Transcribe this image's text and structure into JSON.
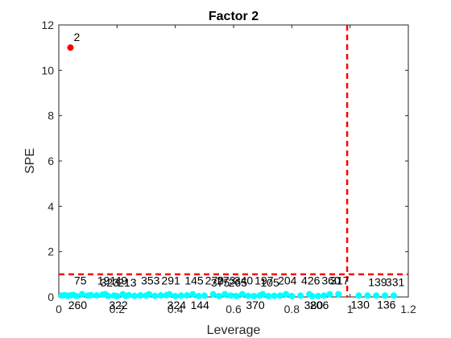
{
  "chart_data": {
    "type": "scatter",
    "title": "Factor 2",
    "xlabel": "Leverage",
    "ylabel": "SPE",
    "xlim": [
      0,
      1.2
    ],
    "ylim": [
      0,
      12
    ],
    "xticks": [
      0,
      0.2,
      0.4,
      0.6,
      0.8,
      1,
      1.2
    ],
    "xtick_labels": [
      "0",
      "0.2",
      "0.4",
      "0.6",
      "0.8",
      "1",
      "1.2"
    ],
    "yticks": [
      0,
      2,
      4,
      6,
      8,
      10,
      12
    ],
    "ytick_labels": [
      "0",
      "2",
      "4",
      "6",
      "8",
      "10",
      "12"
    ],
    "grid": false,
    "thresholds": {
      "leverage": 0.99,
      "spe": 1.0,
      "color": "#ff0000",
      "style": "dashed"
    },
    "series": [
      {
        "color": "#00ffff",
        "points": [
          {
            "x": 0.01,
            "y": 0.06,
            "label": ""
          },
          {
            "x": 0.02,
            "y": 0.08,
            "label": ""
          },
          {
            "x": 0.03,
            "y": 0.05,
            "label": ""
          },
          {
            "x": 0.04,
            "y": 0.07,
            "label": ""
          },
          {
            "x": 0.05,
            "y": 0.09,
            "label": ""
          },
          {
            "x": 0.06,
            "y": 0.04,
            "label": "260"
          },
          {
            "x": 0.08,
            "y": 0.12,
            "label": "75"
          },
          {
            "x": 0.1,
            "y": 0.06,
            "label": ""
          },
          {
            "x": 0.11,
            "y": 0.08,
            "label": ""
          },
          {
            "x": 0.13,
            "y": 0.07,
            "label": ""
          },
          {
            "x": 0.15,
            "y": 0.1,
            "label": ""
          },
          {
            "x": 0.16,
            "y": 0.12,
            "label": "191"
          },
          {
            "x": 0.17,
            "y": 0.04,
            "label": "323"
          },
          {
            "x": 0.19,
            "y": 0.06,
            "label": ""
          },
          {
            "x": 0.2,
            "y": 0.04,
            "label": "322"
          },
          {
            "x": 0.22,
            "y": 0.12,
            "label": "49"
          },
          {
            "x": 0.23,
            "y": 0.04,
            "label": "213"
          },
          {
            "x": 0.24,
            "y": 0.08,
            "label": ""
          },
          {
            "x": 0.26,
            "y": 0.05,
            "label": ""
          },
          {
            "x": 0.28,
            "y": 0.07,
            "label": ""
          },
          {
            "x": 0.3,
            "y": 0.06,
            "label": ""
          },
          {
            "x": 0.31,
            "y": 0.12,
            "label": "353"
          },
          {
            "x": 0.33,
            "y": 0.05,
            "label": ""
          },
          {
            "x": 0.35,
            "y": 0.07,
            "label": ""
          },
          {
            "x": 0.37,
            "y": 0.08,
            "label": ""
          },
          {
            "x": 0.38,
            "y": 0.12,
            "label": "291"
          },
          {
            "x": 0.4,
            "y": 0.04,
            "label": "324"
          },
          {
            "x": 0.42,
            "y": 0.06,
            "label": ""
          },
          {
            "x": 0.44,
            "y": 0.07,
            "label": ""
          },
          {
            "x": 0.46,
            "y": 0.12,
            "label": "145"
          },
          {
            "x": 0.48,
            "y": 0.04,
            "label": "144"
          },
          {
            "x": 0.5,
            "y": 0.06,
            "label": ""
          },
          {
            "x": 0.53,
            "y": 0.12,
            "label": "270"
          },
          {
            "x": 0.55,
            "y": 0.04,
            "label": "375"
          },
          {
            "x": 0.57,
            "y": 0.12,
            "label": "273"
          },
          {
            "x": 0.59,
            "y": 0.06,
            "label": ""
          },
          {
            "x": 0.61,
            "y": 0.04,
            "label": "265"
          },
          {
            "x": 0.63,
            "y": 0.12,
            "label": "340"
          },
          {
            "x": 0.65,
            "y": 0.05,
            "label": ""
          },
          {
            "x": 0.67,
            "y": 0.04,
            "label": "370"
          },
          {
            "x": 0.69,
            "y": 0.06,
            "label": ""
          },
          {
            "x": 0.7,
            "y": 0.12,
            "label": "197"
          },
          {
            "x": 0.72,
            "y": 0.04,
            "label": "105"
          },
          {
            "x": 0.74,
            "y": 0.05,
            "label": ""
          },
          {
            "x": 0.76,
            "y": 0.06,
            "label": ""
          },
          {
            "x": 0.78,
            "y": 0.12,
            "label": "204"
          },
          {
            "x": 0.8,
            "y": 0.04,
            "label": ""
          },
          {
            "x": 0.83,
            "y": 0.06,
            "label": ""
          },
          {
            "x": 0.86,
            "y": 0.12,
            "label": "426"
          },
          {
            "x": 0.87,
            "y": 0.04,
            "label": "380"
          },
          {
            "x": 0.89,
            "y": 0.04,
            "label": "206"
          },
          {
            "x": 0.91,
            "y": 0.06,
            "label": ""
          },
          {
            "x": 0.93,
            "y": 0.12,
            "label": "360"
          },
          {
            "x": 0.96,
            "y": 0.12,
            "label": "317"
          },
          {
            "x": 1.03,
            "y": 0.06,
            "label": "130"
          },
          {
            "x": 1.06,
            "y": 0.06,
            "label": ""
          },
          {
            "x": 1.09,
            "y": 0.06,
            "label": "139"
          },
          {
            "x": 1.12,
            "y": 0.06,
            "label": "136"
          },
          {
            "x": 1.15,
            "y": 0.06,
            "label": "331"
          }
        ]
      },
      {
        "color": "#ff0000",
        "points": [
          {
            "x": 0.04,
            "y": 11.0,
            "label": "2"
          }
        ]
      }
    ]
  }
}
